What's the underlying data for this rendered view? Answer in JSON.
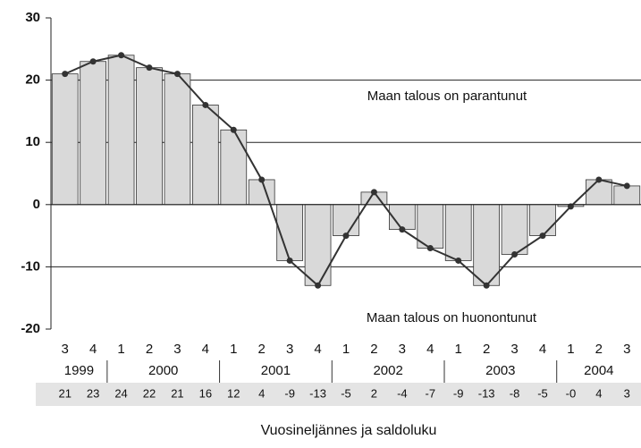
{
  "chart_data": {
    "type": "bar",
    "quarters": [
      "3",
      "4",
      "1",
      "2",
      "3",
      "4",
      "1",
      "2",
      "3",
      "4",
      "1",
      "2",
      "3",
      "4",
      "1",
      "2",
      "3",
      "4",
      "1",
      "2",
      "3"
    ],
    "years": [
      "1999",
      null,
      "2000",
      null,
      null,
      null,
      "2001",
      null,
      null,
      null,
      "2002",
      null,
      null,
      null,
      "2003",
      null,
      null,
      null,
      "2004",
      null,
      null
    ],
    "values": [
      21,
      23,
      24,
      22,
      21,
      16,
      12,
      4,
      -9,
      -13,
      -5,
      2,
      -4,
      -7,
      -9,
      -13,
      -8,
      -5,
      -0.3,
      4,
      3
    ],
    "value_labels": [
      "21",
      "23",
      "24",
      "22",
      "21",
      "16",
      "12",
      "4",
      "-9",
      "-13",
      "-5",
      "2",
      "-4",
      "-7",
      "-9",
      "-13",
      "-8",
      "-5",
      "-0",
      "4",
      "3"
    ],
    "color": "#d9d9d9",
    "line_color": "#333333",
    "ylim": [
      -20,
      30
    ],
    "yticks": [
      -20,
      -10,
      0,
      10,
      20,
      30
    ],
    "grid": true,
    "annotations": [
      "Maan talous on parantunut",
      "Maan talous on huonontunut"
    ],
    "xlabel": "Vuosineljännes ja saldoluku"
  }
}
